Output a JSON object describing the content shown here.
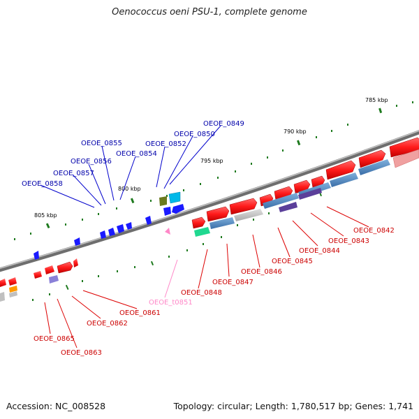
{
  "title": "Oenococcus oeni PSU-1, complete genome",
  "accession": "Accession: NC_008528",
  "topology": "Topology: circular; Length: 1,780,517 bp; Genes: 1,741",
  "colors": {
    "forward_cds": "#ff1a1a",
    "reverse_feature": "#1a1aff",
    "label_forward": "#cc0000",
    "label_reverse": "#0000aa",
    "label_trna": "#ff88c8",
    "tick": "#1e7a1e",
    "backbone": "#7a7a7a"
  },
  "tick_labels": [
    "785 kbp",
    "790 kbp",
    "795 kbp",
    "800 kbp",
    "805 kbp"
  ],
  "gene_labels_forward": [
    "OEOE_0842",
    "OEOE_0843",
    "OEOE_0844",
    "OEOE_0845",
    "OEOE_0846",
    "OEOE_0847",
    "OEOE_0848",
    "OEOE_0861",
    "OEOE_0862",
    "OEOE_0865",
    "OEOE_0863"
  ],
  "gene_labels_reverse": [
    "OEOE_0849",
    "OEOE_0850",
    "OEOE_0852",
    "OEOE_0854",
    "OEOE_0855",
    "OEOE_0856",
    "OEOE_0857",
    "OEOE_0858"
  ],
  "gene_labels_trna": [
    "OEOE_t0851"
  ]
}
